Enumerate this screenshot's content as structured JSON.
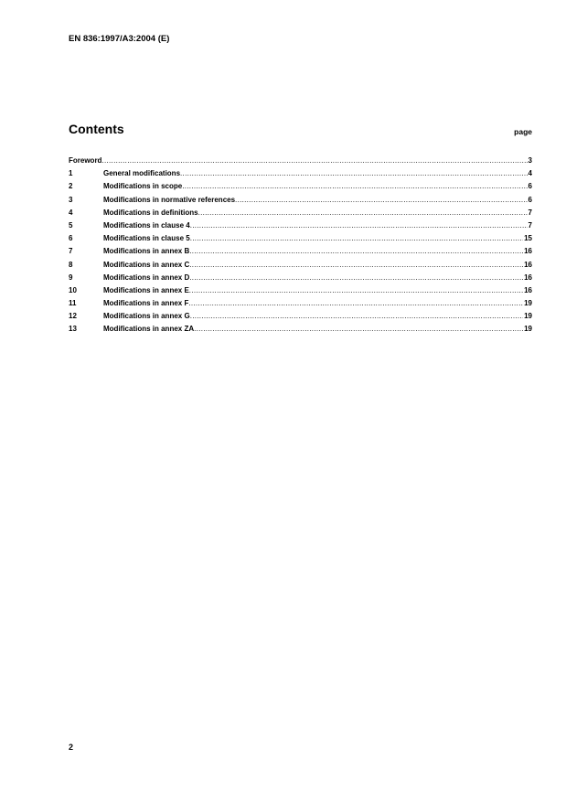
{
  "header": "EN 836:1997/A3:2004 (E)",
  "title": "Contents",
  "page_label": "page",
  "toc": [
    {
      "num": "",
      "label": "Foreword",
      "page": "3"
    },
    {
      "num": "1",
      "label": "General modifications",
      "page": "4"
    },
    {
      "num": "2",
      "label": "Modifications in scope",
      "page": "6"
    },
    {
      "num": "3",
      "label": "Modifications in normative references",
      "page": "6"
    },
    {
      "num": "4",
      "label": "Modifications in definitions",
      "page": "7"
    },
    {
      "num": "5",
      "label": "Modifications in clause 4",
      "page": "7"
    },
    {
      "num": "6",
      "label": "Modifications in clause 5",
      "page": "15"
    },
    {
      "num": "7",
      "label": "Modifications in annex B",
      "page": "16"
    },
    {
      "num": "8",
      "label": "Modifications in annex C",
      "page": "16"
    },
    {
      "num": "9",
      "label": "Modifications in annex D",
      "page": "16"
    },
    {
      "num": "10",
      "label": "Modifications in annex E",
      "page": "16"
    },
    {
      "num": "11",
      "label": "Modifications in annex F",
      "page": "19"
    },
    {
      "num": "12",
      "label": "Modifications in annex G",
      "page": "19"
    },
    {
      "num": "13",
      "label": "Modifications in annex ZA",
      "page": "19"
    }
  ],
  "page_number": "2"
}
